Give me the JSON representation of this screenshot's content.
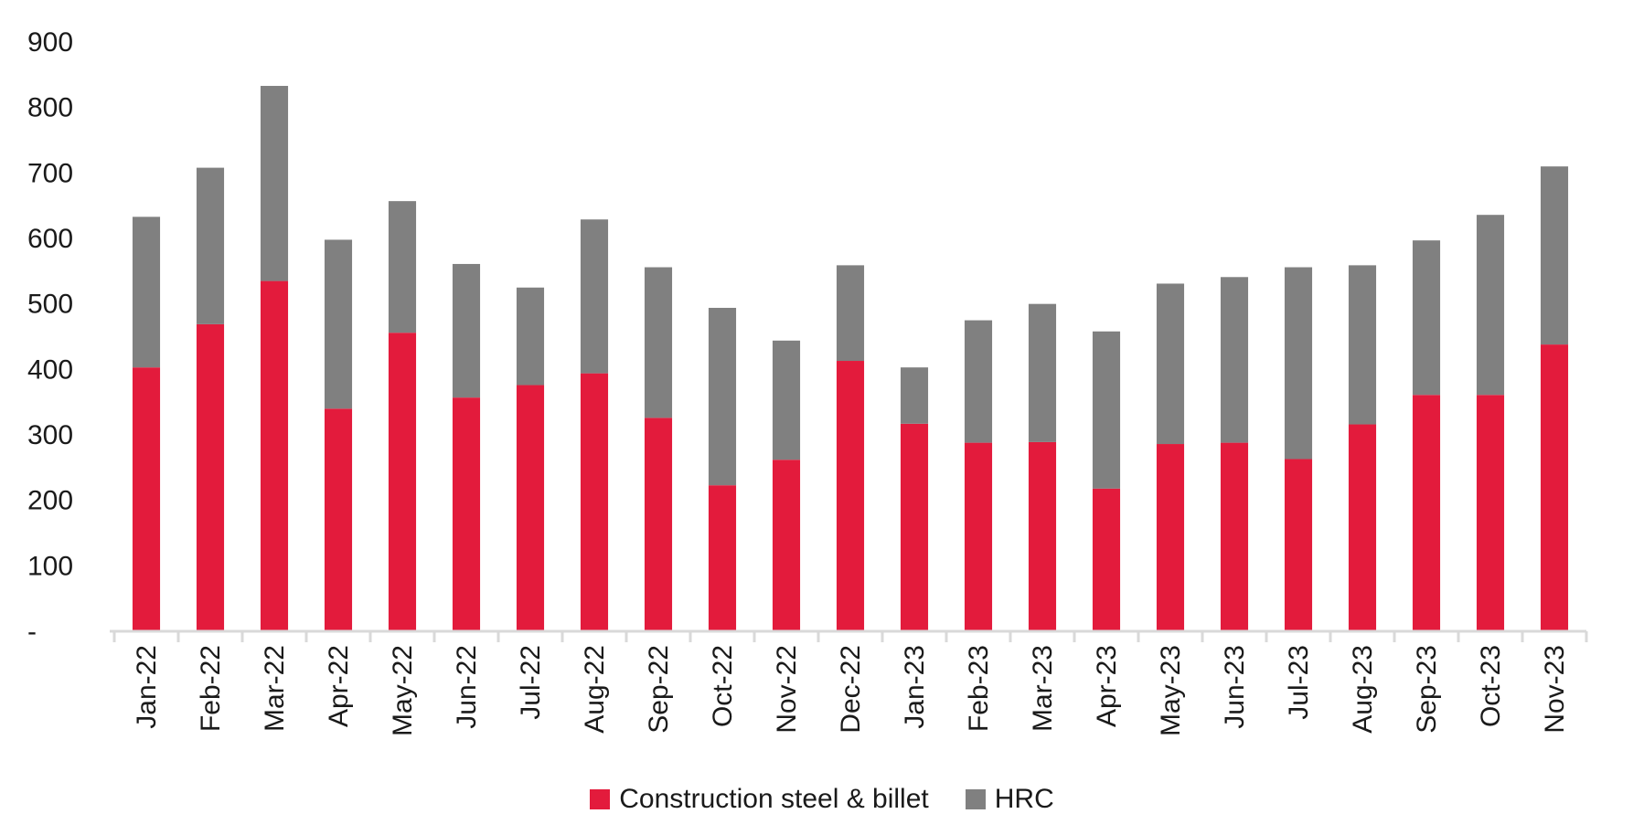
{
  "chart_data": {
    "type": "bar",
    "stacked": true,
    "title": "",
    "xlabel": "",
    "ylabel": "",
    "ylim": [
      0,
      900
    ],
    "yticks": [
      0,
      100,
      200,
      300,
      400,
      500,
      600,
      700,
      800,
      900
    ],
    "ytick_labels": [
      "-",
      "100",
      "200",
      "300",
      "400",
      "500",
      "600",
      "700",
      "800",
      "900"
    ],
    "grid": false,
    "legend_position": "bottom-center",
    "categories": [
      "Jan-22",
      "Feb-22",
      "Mar-22",
      "Apr-22",
      "May-22",
      "Jun-22",
      "Jul-22",
      "Aug-22",
      "Sep-22",
      "Oct-22",
      "Nov-22",
      "Dec-22",
      "Jan-23",
      "Feb-23",
      "Mar-23",
      "Apr-23",
      "May-23",
      "Jun-23",
      "Jul-23",
      "Aug-23",
      "Sep-23",
      "Oct-23",
      "Nov-23"
    ],
    "series": [
      {
        "name": "Construction steel & billet",
        "color": "#e31b3c",
        "values": [
          403,
          469,
          535,
          340,
          456,
          357,
          376,
          394,
          326,
          223,
          262,
          413,
          317,
          288,
          289,
          218,
          286,
          288,
          263,
          316,
          361,
          361,
          438
        ]
      },
      {
        "name": "HRC",
        "color": "#808080",
        "values": [
          230,
          239,
          298,
          258,
          201,
          204,
          149,
          235,
          230,
          271,
          182,
          146,
          86,
          187,
          211,
          240,
          245,
          253,
          293,
          243,
          236,
          275,
          272
        ]
      }
    ]
  }
}
